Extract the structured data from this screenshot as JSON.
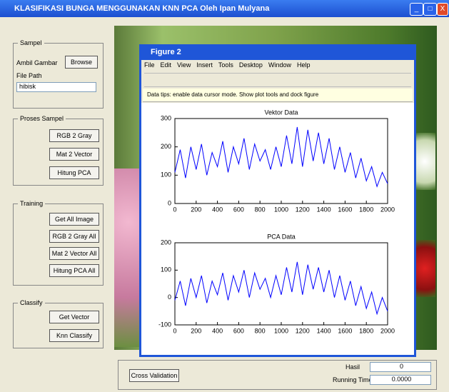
{
  "window": {
    "title": "KLASIFIKASI BUNGA MENGGUNAKAN KNN PCA Oleh Ipan Mulyana"
  },
  "panels": {
    "sampel": {
      "title": "Sampel",
      "label": "Ambil Gambar",
      "button": "Browse",
      "file_label": "File Path",
      "file_value": "hibisk"
    },
    "proses": {
      "title": "Proses Sampel",
      "buttons": [
        "RGB 2 Gray",
        "Mat 2 Vector",
        "Hitung PCA"
      ]
    },
    "training": {
      "title": "Training",
      "buttons": [
        "Get All Image",
        "RGB 2 Gray All",
        "Mat 2 Vector All",
        "Hitung PCA All"
      ]
    },
    "classify": {
      "title": "Classify",
      "buttons": [
        "Get Vector",
        "Knn Classify"
      ]
    },
    "bottom": {
      "button": "Cross Validation",
      "result_label": "Hasil",
      "result_value": "0",
      "time_label": "Running Time",
      "time_value": "0.0000"
    }
  },
  "figure": {
    "title": "Figure 2",
    "menu": [
      "File",
      "Edit",
      "View",
      "Insert",
      "Tools",
      "Desktop",
      "Window",
      "Help"
    ],
    "message": "Data tips: enable data cursor mode. Show plot tools and dock figure",
    "x": [
      0,
      50,
      100,
      150,
      200,
      250,
      300,
      350,
      400,
      450,
      500,
      550,
      600,
      650,
      700,
      750,
      800,
      850,
      900,
      950,
      1000,
      1050,
      1100,
      1150,
      1200,
      1250,
      1300,
      1350,
      1400,
      1450,
      1500,
      1550,
      1600,
      1650,
      1700,
      1750,
      1800,
      1850,
      1900,
      1950,
      2000
    ],
    "xlim": [
      0,
      2000
    ],
    "xticks": [
      0,
      200,
      400,
      600,
      800,
      1000,
      1200,
      1400,
      1600,
      1800,
      2000
    ],
    "color": "#0000ff",
    "plots": [
      {
        "title": "Vektor Data",
        "ylim": [
          0,
          300
        ],
        "yticks": [
          0,
          100,
          200,
          300
        ],
        "values": [
          110,
          190,
          90,
          200,
          120,
          210,
          100,
          180,
          130,
          220,
          110,
          200,
          140,
          230,
          120,
          210,
          150,
          190,
          120,
          200,
          130,
          240,
          140,
          270,
          130,
          260,
          150,
          250,
          140,
          230,
          120,
          200,
          110,
          180,
          90,
          160,
          80,
          130,
          60,
          110,
          70
        ]
      },
      {
        "title": "PCA Data",
        "ylim": [
          -100,
          200
        ],
        "yticks": [
          -100,
          0,
          100,
          200
        ],
        "values": [
          -10,
          60,
          -30,
          70,
          0,
          80,
          -20,
          60,
          10,
          90,
          -10,
          80,
          20,
          100,
          0,
          90,
          30,
          70,
          0,
          80,
          10,
          110,
          20,
          130,
          10,
          120,
          30,
          110,
          20,
          100,
          0,
          80,
          -10,
          60,
          -30,
          40,
          -40,
          20,
          -60,
          0,
          -50
        ]
      }
    ]
  }
}
